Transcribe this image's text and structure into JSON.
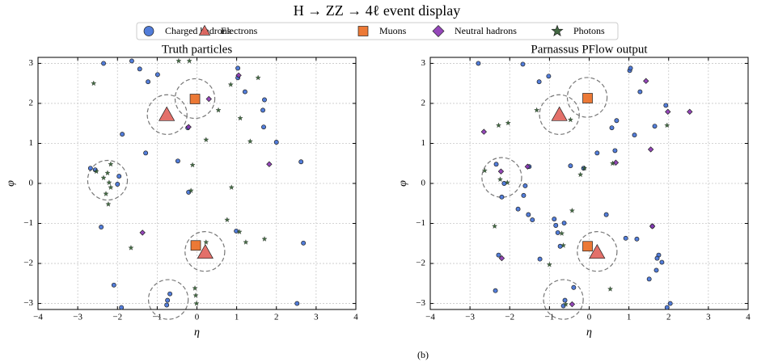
{
  "title": "H → ZZ → 4ℓ event display",
  "caption": "(b)",
  "chart_data": [
    {
      "type": "scatter",
      "title": "Truth particles",
      "x_label": "η",
      "y_label": "φ",
      "xlim": [
        -4,
        4
      ],
      "ylim": [
        -3.15,
        3.15
      ],
      "grid": true,
      "xticks": [
        {
          "value": -4,
          "label": "−4"
        },
        {
          "value": -3,
          "label": "−3"
        },
        {
          "value": -2,
          "label": "−2"
        },
        {
          "value": -1,
          "label": "−1"
        },
        0,
        1,
        2,
        3,
        4
      ],
      "yticks": [
        {
          "value": -3,
          "label": "−3"
        },
        {
          "value": -2,
          "label": "−2"
        },
        {
          "value": -1,
          "label": "−1"
        },
        0,
        1,
        2,
        3
      ],
      "circle_radius": 0.5,
      "circles": {
        "x": [
          -0.75,
          -0.05,
          -2.25,
          0.2,
          -0.72
        ],
        "values": [
          1.72,
          2.12,
          0.08,
          -1.7,
          -2.9
        ]
      },
      "series": [
        {
          "name": "Charged hadrons",
          "marker": "circle",
          "color": "#3f6fd6",
          "x": [
            -2.35,
            -1.64,
            -1.44,
            -1.23,
            -0.99,
            1.03,
            1.03,
            1.21,
            1.66,
            1.7,
            1.68,
            2.0,
            2.62,
            -1.88,
            -1.29,
            -0.48,
            -0.21,
            -2.68,
            -2.56,
            -2.41,
            -0.23,
            -2.09,
            -1.9,
            0.99,
            2.68,
            2.52,
            -2.0,
            -1.96,
            -0.68,
            -0.74,
            -0.76
          ],
          "values": [
            3.0,
            3.06,
            2.86,
            2.54,
            2.72,
            2.88,
            2.64,
            2.29,
            1.83,
            2.09,
            1.41,
            1.03,
            0.54,
            1.23,
            0.76,
            0.56,
            -0.22,
            0.38,
            0.34,
            -1.09,
            1.39,
            -2.54,
            -3.1,
            -1.19,
            -1.49,
            -3.0,
            -0.02,
            0.18,
            -2.76,
            -2.92,
            -3.04
          ]
        },
        {
          "name": "Electrons",
          "marker": "triangle",
          "color": "#e0605a",
          "x": [
            -0.76,
            0.21
          ],
          "values": [
            1.71,
            -1.73
          ]
        },
        {
          "name": "Muons",
          "marker": "square",
          "color": "#ea6a20",
          "x": [
            -0.05,
            -0.03
          ],
          "values": [
            2.11,
            -1.55
          ]
        },
        {
          "name": "Neutral hadrons",
          "marker": "diamond",
          "color": "#8a33b3",
          "x": [
            0.3,
            1.05,
            -0.21,
            1.82,
            -1.37
          ],
          "values": [
            2.11,
            2.7,
            1.41,
            0.48,
            -1.23
          ]
        },
        {
          "name": "Photons",
          "marker": "star",
          "color": "#2f5a2f",
          "x": [
            -2.6,
            -0.46,
            -0.19,
            0.85,
            1.54,
            0.54,
            1.09,
            1.34,
            0.23,
            -0.11,
            -0.15,
            0.87,
            0.76,
            1.07,
            1.23,
            1.7,
            0.23,
            -1.66,
            -2.53,
            -2.35,
            -2.21,
            -2.25,
            -2.17,
            -2.29,
            -2.23,
            -2.17,
            -0.05,
            -0.03,
            -0.01
          ],
          "values": [
            2.5,
            3.06,
            3.06,
            2.47,
            2.64,
            1.83,
            1.63,
            1.05,
            1.09,
            0.46,
            -0.18,
            -0.1,
            -0.91,
            -1.21,
            -1.47,
            -1.39,
            -1.47,
            -1.61,
            0.3,
            0.14,
            0.02,
            0.26,
            -0.1,
            -0.26,
            -0.52,
            0.48,
            -2.62,
            -2.8,
            -3.0
          ]
        }
      ]
    },
    {
      "type": "scatter",
      "title": "Parnassus PFlow output",
      "x_label": "η",
      "y_label": "φ",
      "xlim": [
        -4,
        4
      ],
      "ylim": [
        -3.15,
        3.15
      ],
      "grid": true,
      "xticks": [
        {
          "value": -4,
          "label": "−4"
        },
        {
          "value": -3,
          "label": "−3"
        },
        {
          "value": -2,
          "label": "−2"
        },
        {
          "value": -1,
          "label": "−1"
        },
        0,
        1,
        2,
        3,
        4
      ],
      "yticks": [
        {
          "value": -3,
          "label": "−3"
        },
        {
          "value": -2,
          "label": "−2"
        },
        {
          "value": -1,
          "label": "−1"
        },
        0,
        1,
        2,
        3
      ],
      "circle_radius": 0.5,
      "circles": {
        "x": [
          -0.75,
          -0.05,
          -2.2,
          0.2,
          -0.65
        ],
        "values": [
          1.72,
          2.15,
          0.15,
          -1.7,
          -2.9
        ]
      },
      "series": [
        {
          "name": "Charged hadrons",
          "marker": "circle",
          "color": "#3f6fd6",
          "x": [
            -2.79,
            -1.67,
            -1.02,
            -1.26,
            1.02,
            1.04,
            1.28,
            1.93,
            0.69,
            0.57,
            1.14,
            1.65,
            0.65,
            0.2,
            -0.14,
            -1.51,
            -0.47,
            -1.61,
            -1.53,
            -1.43,
            -0.88,
            -0.84,
            -0.79,
            -0.63,
            -0.73,
            -1.79,
            -1.65,
            -2.2,
            -2.14,
            -2.34,
            0.43,
            1.2,
            0.92,
            1.59,
            1.75,
            1.83,
            1.71,
            1.51,
            1.69,
            2.04,
            1.96,
            -0.39,
            -2.36,
            -2.28,
            -0.61,
            -0.65,
            -1.24
          ],
          "values": [
            3.0,
            2.98,
            2.68,
            2.54,
            2.82,
            2.88,
            2.29,
            1.95,
            1.57,
            1.39,
            1.21,
            1.43,
            0.82,
            0.76,
            0.38,
            0.42,
            0.44,
            -0.06,
            -0.78,
            -0.91,
            -0.89,
            -1.05,
            -1.23,
            -0.99,
            -1.57,
            -0.64,
            -0.3,
            -0.34,
            0.0,
            0.48,
            -0.78,
            -1.39,
            -1.37,
            -1.07,
            -1.79,
            -1.97,
            -1.87,
            -2.39,
            -2.17,
            -3.0,
            -3.1,
            -2.6,
            -2.68,
            -1.79,
            -2.92,
            -3.06,
            -1.89
          ]
        },
        {
          "name": "Electrons",
          "marker": "triangle",
          "color": "#e0605a",
          "x": [
            -0.75,
            0.2
          ],
          "values": [
            1.71,
            -1.73
          ]
        },
        {
          "name": "Muons",
          "marker": "square",
          "color": "#ea6a20",
          "x": [
            -0.04,
            -0.04
          ],
          "values": [
            2.13,
            -1.57
          ]
        },
        {
          "name": "Neutral hadrons",
          "marker": "diamond",
          "color": "#8a33b3",
          "x": [
            -2.65,
            -1.55,
            -2.22,
            1.43,
            1.98,
            2.53,
            1.55,
            0.67,
            1.59,
            -2.2,
            -0.43
          ],
          "values": [
            1.29,
            0.42,
            0.3,
            2.56,
            1.79,
            1.79,
            0.85,
            0.52,
            -1.07,
            -1.87,
            -3.02
          ]
        },
        {
          "name": "Photons",
          "marker": "star",
          "color": "#2f5a2f",
          "x": [
            -2.28,
            -2.04,
            -1.32,
            -0.47,
            -0.12,
            -0.22,
            0.59,
            1.96,
            -2.63,
            -2.06,
            -2.24,
            -0.43,
            -2.38,
            -0.69,
            -0.65,
            -1.0,
            0.53,
            -0.59
          ],
          "values": [
            1.45,
            1.51,
            1.83,
            1.59,
            0.38,
            0.22,
            0.5,
            1.45,
            0.32,
            0.02,
            0.1,
            -0.68,
            -1.07,
            -1.25,
            -1.55,
            -2.03,
            -2.64,
            -3.02
          ]
        }
      ]
    }
  ]
}
